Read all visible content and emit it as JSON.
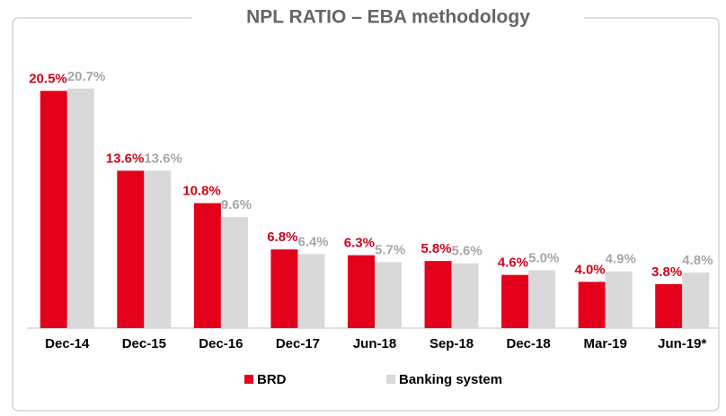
{
  "chart_data": {
    "type": "bar",
    "title": "NPL RATIO – EBA methodology",
    "categories": [
      "Dec-14",
      "Dec-15",
      "Dec-16",
      "Dec-17",
      "Jun-18",
      "Sep-18",
      "Dec-18",
      "Mar-19",
      "Jun-19*"
    ],
    "series": [
      {
        "name": "BRD",
        "color": "#e2001a",
        "values": [
          20.5,
          13.6,
          10.8,
          6.8,
          6.3,
          5.8,
          4.6,
          4.0,
          3.8
        ],
        "value_labels": [
          "20.5%",
          "13.6%",
          "10.8%",
          "6.8%",
          "6.3%",
          "5.8%",
          "4.6%",
          "4.0%",
          "3.8%"
        ]
      },
      {
        "name": "Banking system",
        "color": "#d9d9d9",
        "values": [
          20.7,
          13.6,
          9.6,
          6.4,
          5.7,
          5.6,
          5.0,
          4.9,
          4.8
        ],
        "value_labels": [
          "20.7%",
          "13.6%",
          "9.6%",
          "6.4%",
          "5.7%",
          "5.6%",
          "5.0%",
          "4.9%",
          "4.8%"
        ]
      }
    ],
    "ylim": [
      0,
      22
    ]
  }
}
